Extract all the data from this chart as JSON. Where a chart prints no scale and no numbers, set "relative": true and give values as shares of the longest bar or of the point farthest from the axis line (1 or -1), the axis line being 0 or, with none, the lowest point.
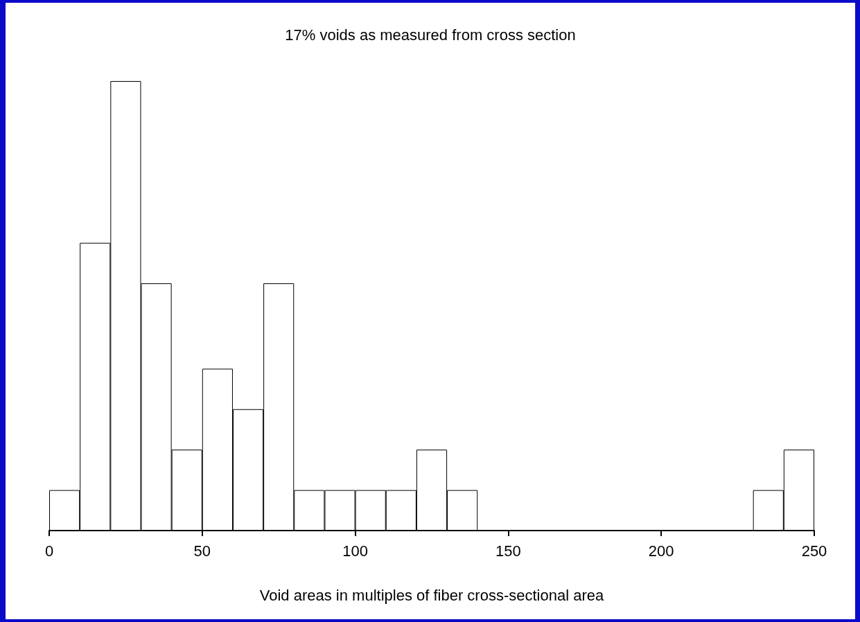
{
  "chart_data": {
    "type": "bar",
    "title": "17% voids as measured from cross section",
    "xlabel": "Void areas in multiples of fiber cross-sectional area",
    "relative": true,
    "x": [
      5,
      15,
      25,
      35,
      45,
      55,
      65,
      75,
      85,
      95,
      105,
      115,
      125,
      135,
      145,
      155,
      165,
      175,
      185,
      195,
      205,
      215,
      225,
      235,
      245
    ],
    "values": [
      0.09,
      0.64,
      1,
      0.55,
      0.18,
      0.36,
      0.27,
      0.55,
      0.09,
      0.09,
      0.09,
      0.09,
      0.18,
      0.09,
      0,
      0,
      0,
      0,
      0,
      0,
      0,
      0,
      0,
      0.09,
      0.18
    ],
    "color": "#ffffff",
    "xlim": [
      0,
      250
    ],
    "xticks": [
      0,
      50,
      100,
      150,
      200,
      250
    ],
    "grid": false
  }
}
